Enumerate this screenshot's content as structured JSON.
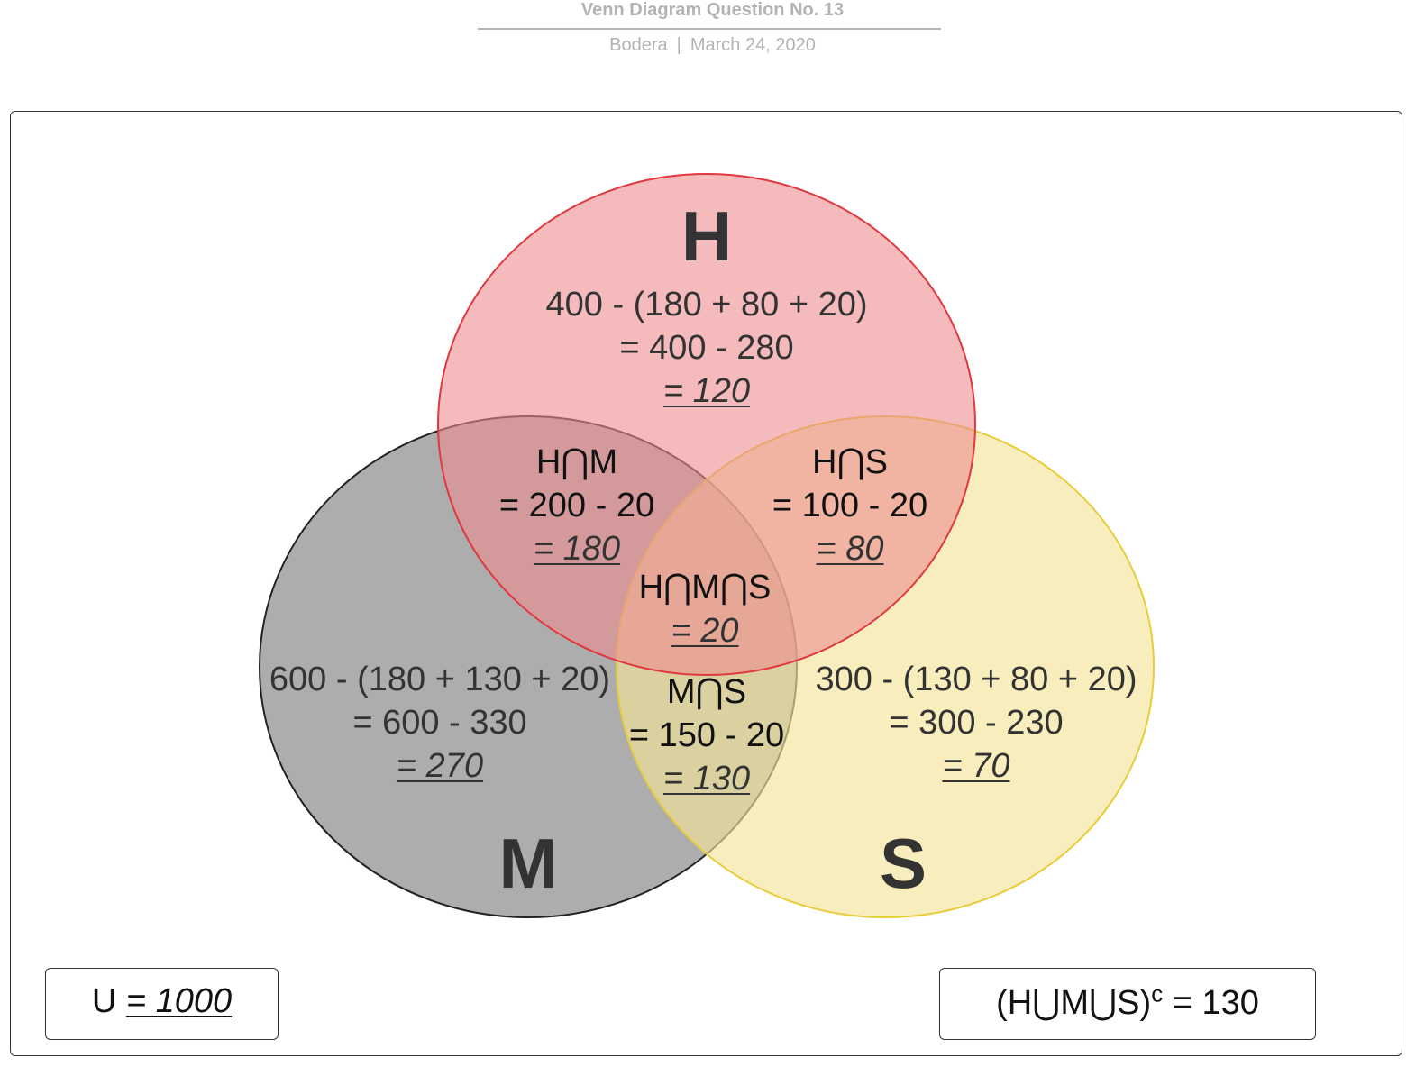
{
  "header": {
    "title": "Venn Diagram Question No. 13",
    "author": "Bodera",
    "separator": "|",
    "date": "March 24, 2020"
  },
  "colors": {
    "H_fill": "#ec8c8f",
    "H_stroke": "#e0383e",
    "M_fill": "#8a8a8a",
    "M_stroke": "#222222",
    "S_fill": "#f5e49a",
    "S_stroke": "#e8cc3a"
  },
  "sets": {
    "H": {
      "label": "H",
      "line1": "400 - (180 + 80 + 20)",
      "line2": "= 400 - 280",
      "result": "= 120"
    },
    "M": {
      "label": "M",
      "line1": "600 - (180 + 130 + 20)",
      "line2": "= 600 - 330",
      "result": "= 270"
    },
    "S": {
      "label": "S",
      "line1": "300 - (130 + 80 + 20)",
      "line2": "= 300 - 230",
      "result": "= 70"
    }
  },
  "intersections": {
    "HM": {
      "label": "H⋂M",
      "line2": "= 200 - 20",
      "result": "= 180"
    },
    "HS": {
      "label": "H⋂S",
      "line2": "= 100 - 20",
      "result": "= 80"
    },
    "MS": {
      "label": "M⋂S",
      "line2": "= 150 - 20",
      "result": "= 130"
    },
    "HMS": {
      "label": "H⋂M⋂S",
      "result": "= 20"
    }
  },
  "universe": {
    "symbol": "U",
    "value": "= 1000"
  },
  "complement": {
    "expr": "(H⋃M⋃S)",
    "sup": "c",
    "value": "= 130"
  }
}
